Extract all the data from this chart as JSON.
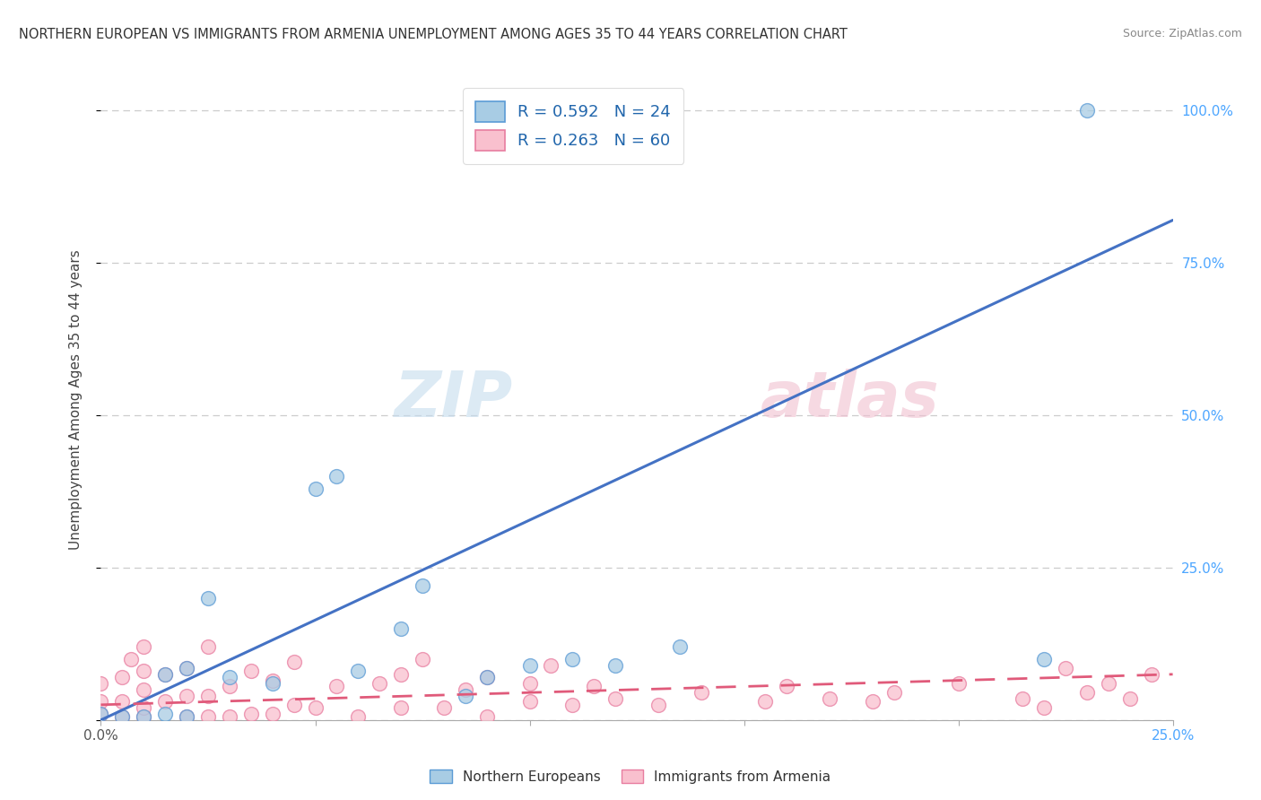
{
  "title": "NORTHERN EUROPEAN VS IMMIGRANTS FROM ARMENIA UNEMPLOYMENT AMONG AGES 35 TO 44 YEARS CORRELATION CHART",
  "source": "Source: ZipAtlas.com",
  "ylabel": "Unemployment Among Ages 35 to 44 years",
  "xlim": [
    0.0,
    0.25
  ],
  "ylim": [
    0.0,
    1.05
  ],
  "blue_R": 0.592,
  "blue_N": 24,
  "pink_R": 0.263,
  "pink_N": 60,
  "blue_color": "#a8cce4",
  "pink_color": "#f9c0ce",
  "blue_edge_color": "#5b9bd5",
  "pink_edge_color": "#e87da0",
  "blue_line_color": "#4472c4",
  "pink_line_color": "#e05a7a",
  "blue_line_x": [
    0.0,
    0.25
  ],
  "blue_line_y": [
    0.0,
    0.82
  ],
  "pink_line_x": [
    0.0,
    0.25
  ],
  "pink_line_y": [
    0.025,
    0.075
  ],
  "blue_scatter_x": [
    0.0,
    0.005,
    0.01,
    0.015,
    0.015,
    0.02,
    0.02,
    0.025,
    0.03,
    0.04,
    0.05,
    0.055,
    0.06,
    0.07,
    0.075,
    0.085,
    0.09,
    0.095,
    0.1,
    0.11,
    0.12,
    0.135,
    0.22,
    0.23
  ],
  "blue_scatter_y": [
    0.01,
    0.005,
    0.005,
    0.01,
    0.075,
    0.005,
    0.085,
    0.2,
    0.07,
    0.06,
    0.38,
    0.4,
    0.08,
    0.15,
    0.22,
    0.04,
    0.07,
    1.0,
    0.09,
    0.1,
    0.09,
    0.12,
    0.1,
    1.0
  ],
  "pink_scatter_x": [
    0.0,
    0.0,
    0.0,
    0.005,
    0.005,
    0.005,
    0.007,
    0.01,
    0.01,
    0.01,
    0.01,
    0.01,
    0.015,
    0.015,
    0.02,
    0.02,
    0.02,
    0.025,
    0.025,
    0.025,
    0.03,
    0.03,
    0.035,
    0.035,
    0.04,
    0.04,
    0.045,
    0.045,
    0.05,
    0.055,
    0.06,
    0.065,
    0.07,
    0.07,
    0.075,
    0.08,
    0.085,
    0.09,
    0.09,
    0.1,
    0.1,
    0.105,
    0.11,
    0.115,
    0.12,
    0.13,
    0.14,
    0.155,
    0.16,
    0.17,
    0.18,
    0.185,
    0.2,
    0.215,
    0.22,
    0.225,
    0.23,
    0.235,
    0.24,
    0.245
  ],
  "pink_scatter_y": [
    0.01,
    0.03,
    0.06,
    0.005,
    0.03,
    0.07,
    0.1,
    0.005,
    0.02,
    0.05,
    0.08,
    0.12,
    0.03,
    0.075,
    0.005,
    0.04,
    0.085,
    0.005,
    0.04,
    0.12,
    0.005,
    0.055,
    0.01,
    0.08,
    0.01,
    0.065,
    0.025,
    0.095,
    0.02,
    0.055,
    0.005,
    0.06,
    0.02,
    0.075,
    0.1,
    0.02,
    0.05,
    0.005,
    0.07,
    0.03,
    0.06,
    0.09,
    0.025,
    0.055,
    0.035,
    0.025,
    0.045,
    0.03,
    0.055,
    0.035,
    0.03,
    0.045,
    0.06,
    0.035,
    0.02,
    0.085,
    0.045,
    0.06,
    0.035,
    0.075
  ],
  "background_color": "#ffffff",
  "grid_color": "#cccccc",
  "watermark_zip_color": "#c8dff0",
  "watermark_atlas_color": "#f0c8d8"
}
